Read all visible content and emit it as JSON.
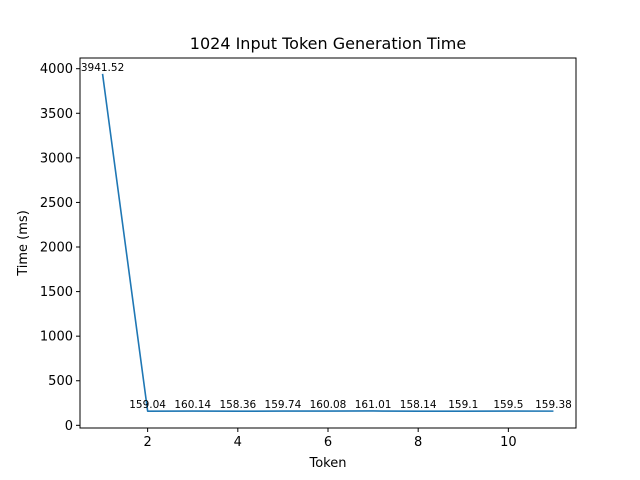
{
  "chart_data": {
    "type": "line",
    "title": "1024 Input Token Generation Time",
    "xlabel": "Token",
    "ylabel": "Time (ms)",
    "x": [
      1,
      2,
      3,
      4,
      5,
      6,
      7,
      8,
      9,
      10,
      11
    ],
    "series": [
      {
        "values": [
          3941.52,
          159.04,
          160.14,
          158.36,
          159.74,
          160.08,
          161.01,
          158.14,
          159.1,
          159.5,
          159.38
        ],
        "color": "#1f77b4"
      }
    ],
    "data_labels": [
      "3941.52",
      "159.04",
      "160.14",
      "158.36",
      "159.74",
      "160.08",
      "161.01",
      "158.14",
      "159.1",
      "159.5",
      "159.38"
    ],
    "xlim": [
      0.5,
      11.5
    ],
    "ylim": [
      -30,
      4120
    ],
    "xticks": [
      2,
      4,
      6,
      8,
      10
    ],
    "yticks": [
      0,
      500,
      1000,
      1500,
      2000,
      2500,
      3000,
      3500,
      4000
    ],
    "grid": false,
    "legend": "none"
  }
}
